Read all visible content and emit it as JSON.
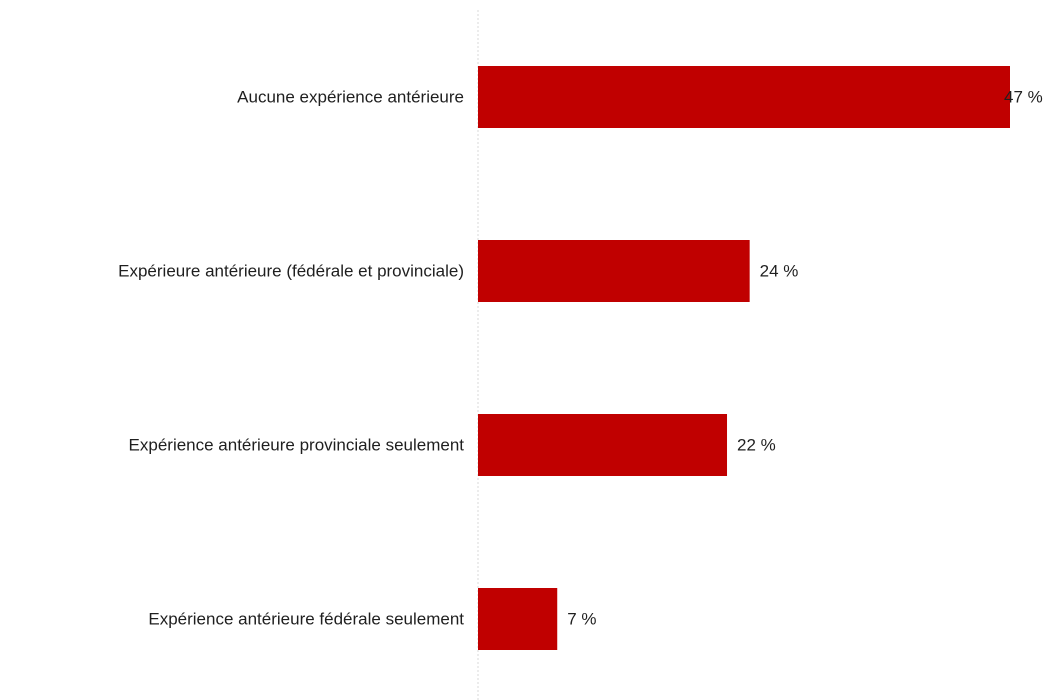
{
  "chart_data": {
    "type": "bar",
    "orientation": "horizontal",
    "categories": [
      "Aucune expérience antérieure",
      "Expérieure antérieure (fédérale et provinciale)",
      "Expérience antérieure provinciale seulement",
      "Expérience antérieure fédérale seulement"
    ],
    "values": [
      47,
      24,
      22,
      7
    ],
    "value_labels": [
      "47 %",
      "24 %",
      "22 %",
      "7 %"
    ],
    "xlim": [
      0,
      47
    ],
    "grid": false,
    "legend": "none",
    "title": "",
    "xlabel": "",
    "ylabel": ""
  },
  "colors": {
    "bar": "#c00000",
    "text": "#1f1f1f",
    "axis": "#d9d9d9"
  }
}
